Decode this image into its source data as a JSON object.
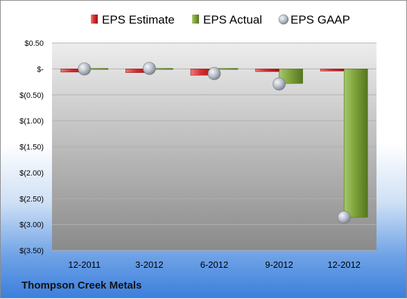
{
  "company": "Thompson Creek Metals",
  "colors": {
    "estimate": "#d92b2b",
    "actual": "#7fa33b",
    "gaap": "#b8bec8"
  },
  "chart_data": {
    "type": "bar",
    "categories": [
      "12-2011",
      "3-2012",
      "6-2012",
      "9-2012",
      "12-2012"
    ],
    "series": [
      {
        "name": "EPS Estimate",
        "values": [
          -0.06,
          -0.07,
          -0.12,
          -0.05,
          -0.04
        ]
      },
      {
        "name": "EPS Actual",
        "values": [
          0.0,
          0.01,
          0.0,
          -0.28,
          -2.86
        ]
      },
      {
        "name": "EPS GAAP",
        "values": [
          0.0,
          0.01,
          -0.09,
          -0.29,
          -2.86
        ]
      }
    ],
    "ylim": [
      -3.5,
      0.5
    ],
    "yticks": [
      0.5,
      0,
      -0.5,
      -1.0,
      -1.5,
      -2.0,
      -2.5,
      -3.0,
      -3.5
    ],
    "yticklabels": [
      "$0.50",
      "$-",
      "$(0.50)",
      "$(1.00)",
      "$(1.50)",
      "$(2.00)",
      "$(2.50)",
      "$(3.00)",
      "$(3.50)"
    ],
    "legend": "top",
    "grid": true
  }
}
